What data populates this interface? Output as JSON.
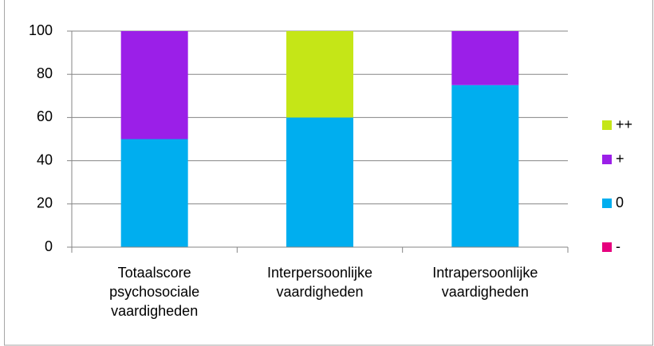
{
  "chart_data": {
    "type": "stacked_bar",
    "categories": [
      "Totaalscore psychosociale vaardigheden",
      "Interpersoonlijke vaardigheden",
      "Intrapersoonlijke vaardigheden"
    ],
    "series": [
      {
        "name": "-",
        "color": "#e6007e",
        "values": [
          0,
          0,
          0
        ]
      },
      {
        "name": "0",
        "color": "#00aeef",
        "values": [
          50,
          60,
          75
        ]
      },
      {
        "name": "+",
        "color": "#9b1fe8",
        "values": [
          50,
          0,
          25
        ]
      },
      {
        "name": "++",
        "color": "#c5e617",
        "values": [
          0,
          40,
          0
        ]
      }
    ],
    "ylim": [
      0,
      100
    ],
    "yticks": [
      0,
      20,
      40,
      60,
      80,
      100
    ],
    "grid": true,
    "legend": "right"
  }
}
